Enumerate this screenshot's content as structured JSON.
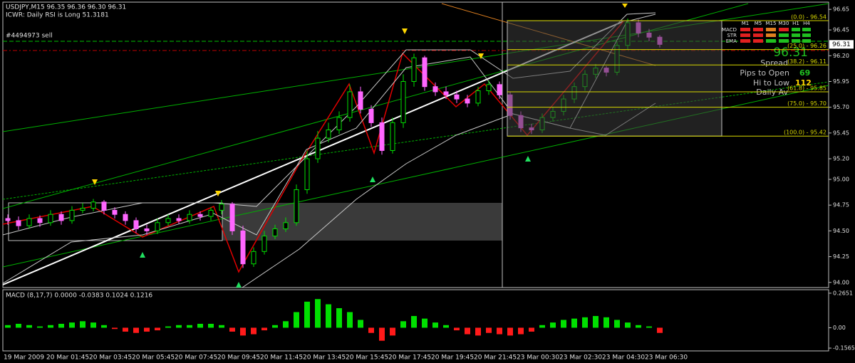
{
  "chart_data": [
    {
      "type": "candlestick",
      "title": "USDJPY,M15  96.35 96.36 96.30 96.31",
      "annotations": [
        "ICWR: Daily RSI is Long 51.3181",
        "#4494973 sell"
      ],
      "categories": [
        "19 Mar 2009",
        null,
        null,
        null,
        "20 Mar 01:45",
        null,
        null,
        null,
        "20 Mar 03:45",
        null,
        null,
        null,
        "20 Mar 05:45",
        null,
        null,
        null,
        "20 Mar 07:45",
        null,
        null,
        null,
        "20 Mar 09:45",
        null,
        null,
        null,
        "20 Mar 11:45",
        null,
        null,
        null,
        "20 Mar 13:45",
        null,
        null,
        null,
        "20 Mar 15:45",
        null,
        null,
        null,
        "20 Mar 17:45",
        null,
        null,
        null,
        "20 Mar 19:45",
        null,
        null,
        null,
        "20 Mar 21:45",
        null,
        null,
        null,
        "23 Mar 00:30",
        null,
        null,
        null,
        "23 Mar 02:30",
        null,
        null,
        null,
        "23 Mar 04:30",
        null,
        null,
        null,
        "23 Mar 06:30",
        null
      ],
      "open": [
        94.62,
        94.6,
        94.55,
        94.62,
        94.58,
        94.66,
        94.6,
        94.7,
        94.72,
        94.78,
        94.7,
        94.66,
        94.6,
        94.52,
        94.5,
        94.58,
        94.62,
        94.6,
        94.66,
        94.64,
        94.7,
        94.76,
        94.5,
        94.18,
        94.3,
        94.45,
        94.52,
        94.58,
        94.9,
        95.2,
        95.4,
        95.48,
        95.6,
        95.85,
        95.68,
        95.55,
        95.28,
        95.55,
        95.95,
        96.18,
        95.9,
        95.85,
        95.82,
        95.78,
        95.74,
        95.86,
        95.92,
        95.82,
        95.62,
        95.5,
        95.48,
        95.6,
        95.66,
        95.78,
        95.9,
        96.02,
        96.08,
        96.04,
        96.3,
        96.52,
        96.42,
        96.38
      ],
      "high": [
        94.66,
        94.64,
        94.66,
        94.65,
        94.7,
        94.69,
        94.74,
        94.77,
        94.81,
        94.8,
        94.73,
        94.69,
        94.63,
        94.56,
        94.62,
        94.66,
        94.66,
        94.7,
        94.69,
        94.73,
        94.8,
        94.78,
        94.55,
        94.34,
        94.5,
        94.56,
        94.63,
        94.95,
        95.28,
        95.47,
        95.55,
        95.66,
        95.92,
        95.9,
        95.72,
        95.6,
        95.6,
        96.02,
        96.22,
        96.2,
        95.94,
        95.9,
        95.86,
        95.82,
        95.9,
        95.96,
        95.95,
        95.85,
        95.66,
        95.54,
        95.64,
        95.7,
        95.82,
        95.94,
        96.06,
        96.12,
        96.1,
        96.34,
        96.56,
        96.55,
        96.46,
        96.4
      ],
      "low": [
        94.56,
        94.51,
        94.52,
        94.54,
        94.55,
        94.56,
        94.57,
        94.67,
        94.69,
        94.66,
        94.62,
        94.56,
        94.48,
        94.46,
        94.47,
        94.55,
        94.57,
        94.57,
        94.6,
        94.6,
        94.66,
        94.46,
        94.14,
        94.15,
        94.27,
        94.42,
        94.49,
        94.55,
        94.86,
        95.16,
        95.36,
        95.44,
        95.56,
        95.64,
        95.51,
        95.24,
        95.25,
        95.5,
        95.9,
        95.86,
        95.81,
        95.78,
        95.74,
        95.7,
        95.71,
        95.82,
        95.78,
        95.58,
        95.46,
        95.44,
        95.45,
        95.56,
        95.62,
        95.74,
        95.86,
        95.98,
        96.0,
        96.01,
        96.26,
        96.38,
        96.34,
        96.28
      ],
      "close": [
        94.6,
        94.55,
        94.62,
        94.58,
        94.66,
        94.6,
        94.7,
        94.72,
        94.78,
        94.7,
        94.66,
        94.6,
        94.52,
        94.5,
        94.58,
        94.62,
        94.6,
        94.66,
        94.64,
        94.7,
        94.76,
        94.5,
        94.18,
        94.3,
        94.45,
        94.52,
        94.58,
        94.9,
        95.2,
        95.4,
        95.48,
        95.6,
        95.85,
        95.68,
        95.55,
        95.28,
        95.55,
        95.95,
        96.18,
        95.9,
        95.85,
        95.82,
        95.78,
        95.74,
        95.86,
        95.92,
        95.82,
        95.62,
        95.5,
        95.48,
        95.6,
        95.66,
        95.78,
        95.9,
        96.02,
        96.08,
        96.04,
        96.3,
        96.52,
        96.42,
        96.38,
        96.31
      ],
      "up_color": "#00e000",
      "down_color": "#ff66ff",
      "ylim": [
        93.95,
        96.72
      ],
      "yticks": [
        96.65,
        96.45,
        {
          "value": 96.2,
          "label": "96.20"
        },
        95.95,
        {
          "value": 95.7,
          "label": "95.70"
        },
        95.45,
        {
          "value": 95.2,
          "label": "95.20"
        },
        {
          "value": 95.0,
          "label": "95.00"
        },
        94.75,
        {
          "value": 94.5,
          "label": "94.50"
        },
        94.25,
        {
          "value": 94.0,
          "label": "94.00"
        }
      ],
      "last_price": 96.31,
      "fib_levels": [
        {
          "value": 96.54,
          "label": "(0.0) - 96.54"
        },
        {
          "value": 96.26,
          "label": "(25.0) - 96.26"
        },
        {
          "value": 96.11,
          "label": "(38.2) - 96.11"
        },
        {
          "value": 95.85,
          "label": "(61.8) - 95.85"
        },
        {
          "value": 95.7,
          "label": "(75.0) - 95.70"
        },
        {
          "value": 95.42,
          "label": "(100.0) - 95.42"
        }
      ],
      "fib_color": "#d8d800"
    },
    {
      "type": "histogram",
      "title": "MACD  (8,17,7) 0.0000 -0.0383 0.1024 0.1216",
      "values": [
        0.02,
        0.03,
        0.02,
        0.01,
        0.02,
        0.03,
        0.04,
        0.05,
        0.04,
        0.02,
        -0.01,
        -0.03,
        -0.04,
        -0.03,
        -0.02,
        0.01,
        0.02,
        0.02,
        0.03,
        0.03,
        0.02,
        -0.03,
        -0.06,
        -0.05,
        -0.02,
        0.02,
        0.05,
        0.12,
        0.2,
        0.22,
        0.18,
        0.15,
        0.12,
        0.06,
        -0.04,
        -0.1,
        -0.06,
        0.05,
        0.09,
        0.07,
        0.04,
        0.02,
        -0.02,
        -0.05,
        -0.06,
        -0.04,
        -0.05,
        -0.06,
        -0.05,
        -0.03,
        0.02,
        0.04,
        0.06,
        0.07,
        0.08,
        0.09,
        0.08,
        0.06,
        0.04,
        0.02,
        0.01,
        -0.04
      ],
      "pos_color": "#00e000",
      "neg_color": "#ff1a1a",
      "ylim": [
        -0.178,
        0.292
      ],
      "yticks": [
        0.2651,
        {
          "value": 0,
          "label": "0.00"
        },
        -0.1565
      ]
    }
  ],
  "info_panel": {
    "timeframes": [
      "M1",
      "M5",
      "M15",
      "M30",
      "H1",
      "H4"
    ],
    "rows": [
      "MACD",
      "STR",
      "EMA"
    ],
    "price": "96.31",
    "spread": "Spread",
    "pips_to_open_label": "Pips to Open",
    "pips_to_open": 69,
    "hi_to_low_label": "Hi to Low",
    "hi_to_low": 112,
    "daily_av": "Daily Av"
  }
}
